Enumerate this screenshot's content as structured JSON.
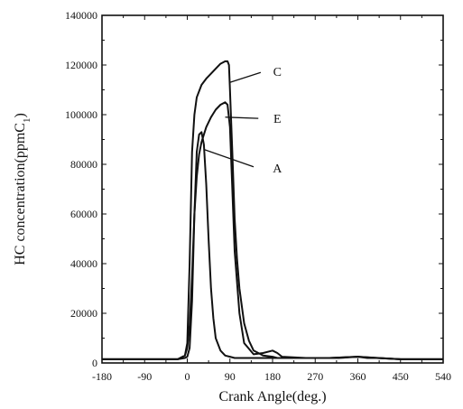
{
  "chart_data": {
    "type": "line",
    "title": "",
    "xlabel": "Crank Angle(deg.)",
    "ylabel_parts": {
      "main": "HC concentration(ppmC",
      "sub": "1",
      "end": ")"
    },
    "xlim": [
      -180,
      540
    ],
    "ylim": [
      0,
      140000
    ],
    "x_ticks": [
      -180,
      -90,
      0,
      90,
      180,
      270,
      360,
      450,
      540
    ],
    "y_ticks": [
      0,
      20000,
      40000,
      60000,
      80000,
      100000,
      120000,
      140000
    ],
    "grid": false,
    "legend": "inline labels",
    "series": [
      {
        "name": "C",
        "x": [
          -180,
          -60,
          -20,
          -5,
          0,
          5,
          10,
          15,
          20,
          30,
          40,
          50,
          60,
          70,
          80,
          85,
          88,
          90,
          95,
          100,
          105,
          110,
          120,
          130,
          140,
          160,
          180,
          190,
          200,
          230,
          270,
          320,
          360,
          380,
          400,
          450,
          500,
          540
        ],
        "y": [
          1500,
          1500,
          1500,
          3000,
          8000,
          40000,
          85000,
          100000,
          107000,
          112000,
          114500,
          116500,
          118500,
          120500,
          121500,
          121500,
          120000,
          110000,
          85000,
          58000,
          42000,
          30000,
          16000,
          9000,
          5000,
          3000,
          2500,
          2000,
          2000,
          2000,
          2000,
          2000,
          2500,
          2000,
          2000,
          1500,
          1500,
          1500
        ]
      },
      {
        "name": "E",
        "x": [
          -180,
          -60,
          -20,
          -5,
          0,
          5,
          10,
          15,
          20,
          25,
          30,
          40,
          50,
          60,
          70,
          80,
          85,
          90,
          95,
          100,
          110,
          120,
          140,
          160,
          180,
          190,
          200,
          250,
          300,
          360,
          400,
          450,
          540
        ],
        "y": [
          1500,
          1500,
          1500,
          3000,
          6000,
          15000,
          35000,
          60000,
          75000,
          84000,
          89000,
          95000,
          99000,
          102000,
          104000,
          105000,
          104000,
          95000,
          70000,
          45000,
          20000,
          8000,
          3500,
          4000,
          5000,
          4000,
          2500,
          2000,
          2000,
          2500,
          2000,
          1500,
          1500
        ]
      },
      {
        "name": "A",
        "x": [
          -180,
          -60,
          -20,
          -5,
          0,
          5,
          10,
          15,
          20,
          25,
          30,
          35,
          40,
          45,
          50,
          55,
          60,
          70,
          80,
          90,
          100,
          150,
          200,
          300,
          360,
          450,
          540
        ],
        "y": [
          1500,
          1500,
          1500,
          2000,
          2500,
          6000,
          25000,
          60000,
          85000,
          92000,
          93000,
          88000,
          72000,
          50000,
          30000,
          18000,
          10000,
          5000,
          3000,
          2500,
          2000,
          2000,
          2000,
          2000,
          2500,
          1500,
          1500
        ]
      }
    ],
    "annotations": [
      {
        "text": "C",
        "from_x": 90,
        "from_y": 113000,
        "to_x": 155,
        "to_y": 117000,
        "label_x": 190,
        "label_y": 117500
      },
      {
        "text": "E",
        "from_x": 80,
        "from_y": 99000,
        "to_x": 150,
        "to_y": 98500,
        "label_x": 190,
        "label_y": 98500
      },
      {
        "text": "A",
        "from_x": 35,
        "from_y": 86000,
        "to_x": 140,
        "to_y": 79000,
        "label_x": 190,
        "label_y": 78500
      }
    ]
  }
}
